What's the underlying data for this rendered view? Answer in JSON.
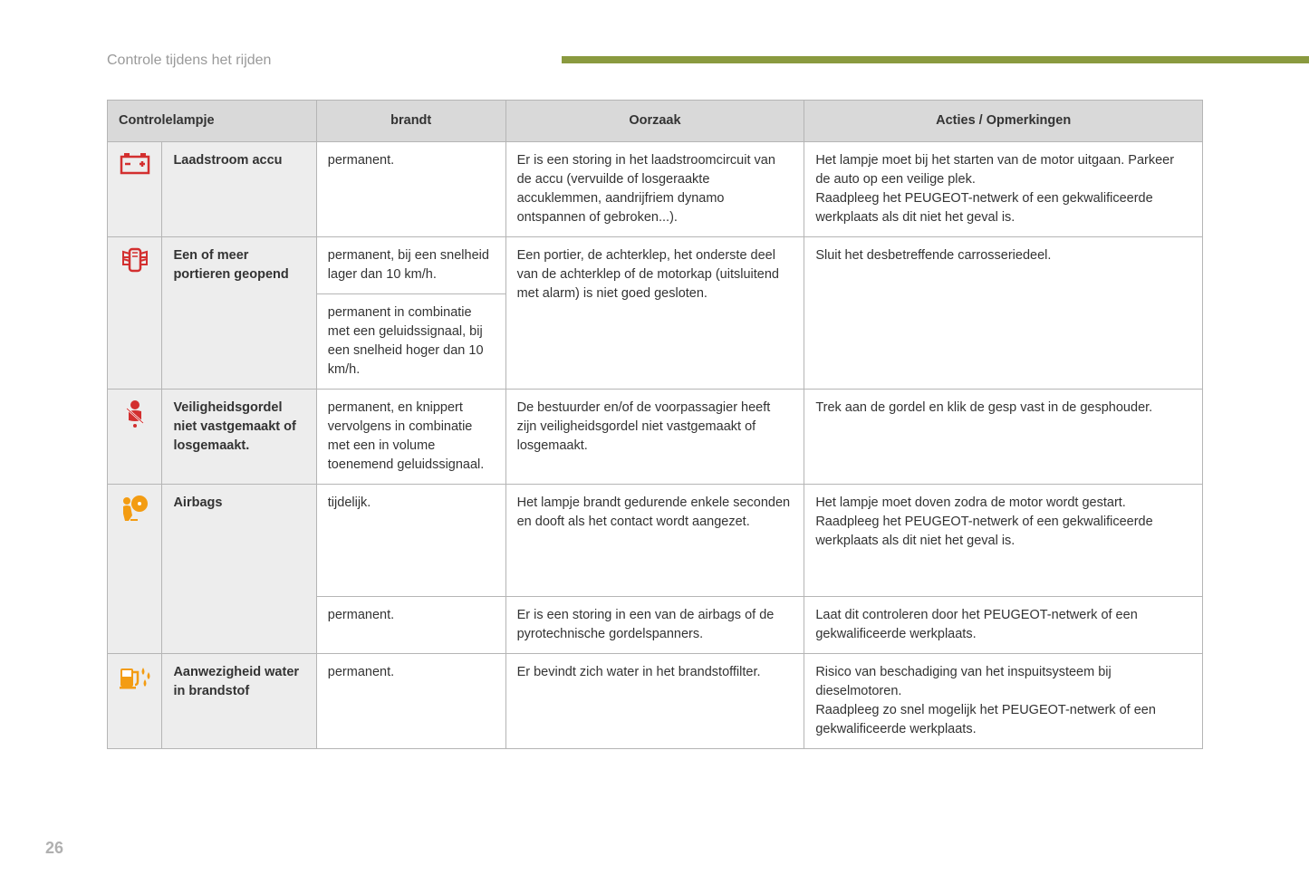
{
  "header": {
    "title": "Controle tijdens het rijden",
    "bar_color": "#8a9a3f"
  },
  "page_number": "26",
  "table": {
    "columns": [
      "Controlelampje",
      "brandt",
      "Oorzaak",
      "Acties / Opmerkingen"
    ],
    "icon_colors": {
      "battery": "#d32f2f",
      "door": "#d32f2f",
      "seatbelt": "#d32f2f",
      "airbag": "#f39c12",
      "fuel_water": "#f39c12"
    },
    "rows": {
      "battery": {
        "label": "Laadstroom accu",
        "brandt": "permanent.",
        "oorzaak": "Er is een storing in het laadstroomcircuit van de accu (vervuilde of losgeraakte accuklemmen, aandrijfriem dynamo ontspannen of gebroken...).",
        "acties": "Het lampje moet bij het starten van de motor uitgaan. Parkeer de auto op een veilige plek.\nRaadpleeg het PEUGEOT-netwerk of een gekwalificeerde werkplaats als dit niet het geval is."
      },
      "doors": {
        "label": "Een of meer portieren geopend",
        "brandt1": "permanent, bij een snelheid lager dan 10 km/h.",
        "brandt2": "permanent in combinatie met een geluidssignaal, bij een snelheid hoger dan 10 km/h.",
        "oorzaak": "Een portier, de achterklep, het onderste deel van de achterklep of de motorkap (uitsluitend met alarm) is niet goed gesloten.",
        "acties": "Sluit het desbetreffende carrosseriedeel."
      },
      "seatbelt": {
        "label": "Veiligheidsgordel niet vastgemaakt of losgemaakt.",
        "brandt": "permanent, en knippert vervolgens in combinatie met een in volume toenemend geluidssignaal.",
        "oorzaak": "De bestuurder en/of de voorpassagier heeft zijn veiligheidsgordel niet vastgemaakt of losgemaakt.",
        "acties": "Trek aan de gordel en klik de gesp vast in de gesphouder."
      },
      "airbag1": {
        "label": "Airbags",
        "brandt": "tijdelijk.",
        "oorzaak": "Het lampje brandt gedurende enkele seconden en dooft als het contact wordt aangezet.",
        "acties": "Het lampje moet doven zodra de motor wordt gestart. Raadpleeg het PEUGEOT-netwerk of een gekwalificeerde werkplaats als dit niet het geval is."
      },
      "airbag2": {
        "brandt": "permanent.",
        "oorzaak": "Er is een storing in een van de airbags of de pyrotechnische gordelspanners.",
        "acties": "Laat dit controleren door het PEUGEOT-netwerk of een gekwalificeerde werkplaats."
      },
      "fuel_water": {
        "label": "Aanwezigheid water in brandstof",
        "brandt": "permanent.",
        "oorzaak": "Er bevindt zich water in het brandstoffilter.",
        "acties": "Risico van beschadiging van het inspuitsysteem bij dieselmotoren.\nRaadpleeg zo snel mogelijk het PEUGEOT-netwerk of een gekwalificeerde werkplaats."
      }
    }
  }
}
